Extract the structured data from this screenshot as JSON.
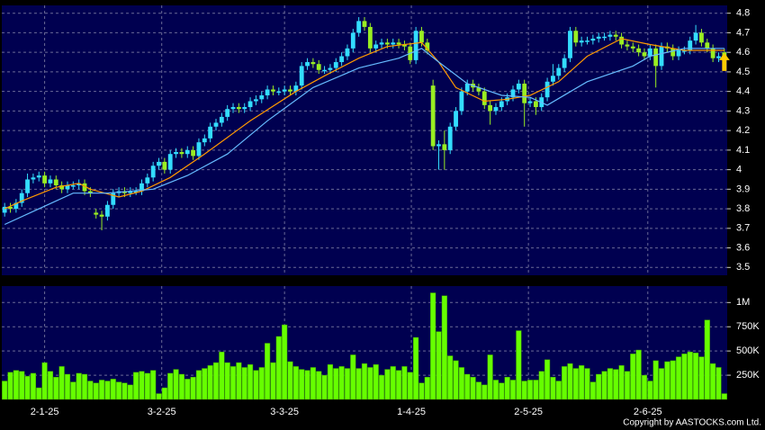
{
  "chart_data": [
    {
      "type": "candlestick",
      "up_color": "#33ddff",
      "down_color": "#99ee22",
      "xlim": [
        -0.5,
        126.5
      ],
      "ylim": [
        3.46,
        4.84
      ],
      "yticks": [
        3.5,
        3.6,
        3.7,
        3.8,
        3.9,
        4,
        4.1,
        4.2,
        4.3,
        4.4,
        4.5,
        4.6,
        4.7,
        4.8
      ],
      "grid": true,
      "open": [
        3.78,
        3.81,
        3.8,
        3.83,
        3.88,
        3.95,
        3.96,
        3.97,
        3.93,
        3.95,
        3.92,
        3.9,
        3.92,
        3.92,
        3.93,
        3.89,
        3.78,
        3.77,
        3.76,
        3.82,
        3.88,
        3.89,
        3.88,
        3.89,
        3.89,
        3.93,
        3.96,
        4.02,
        4.04,
        4.0,
        4.08,
        4.09,
        4.08,
        4.1,
        4.07,
        4.14,
        4.16,
        4.22,
        4.24,
        4.27,
        4.31,
        4.32,
        4.31,
        4.32,
        4.35,
        4.36,
        4.38,
        4.41,
        4.4,
        4.4,
        4.41,
        4.4,
        4.43,
        4.53,
        4.55,
        4.54,
        4.51,
        4.51,
        4.52,
        4.55,
        4.58,
        4.62,
        4.7,
        4.76,
        4.73,
        4.62,
        4.64,
        4.65,
        4.64,
        4.65,
        4.64,
        4.63,
        4.56,
        4.71,
        4.65,
        4.43,
        4.12,
        4.13,
        4.1,
        4.22,
        4.3,
        4.4,
        4.44,
        4.42,
        4.4,
        4.33,
        4.3,
        4.32,
        4.35,
        4.37,
        4.41,
        4.44,
        4.34,
        4.35,
        4.32,
        4.37,
        4.45,
        4.48,
        4.52,
        4.57,
        4.71,
        4.65,
        4.66,
        4.66,
        4.67,
        4.68,
        4.68,
        4.69,
        4.68,
        4.64,
        4.63,
        4.62,
        4.6,
        4.58,
        4.62,
        4.53,
        4.63,
        4.62,
        4.58,
        4.61,
        4.61,
        4.66,
        4.7,
        4.65,
        4.62,
        4.57,
        4.6
      ],
      "high": [
        3.83,
        3.83,
        3.85,
        3.9,
        3.98,
        3.98,
        3.99,
        3.99,
        3.97,
        3.97,
        3.94,
        3.94,
        3.94,
        3.95,
        3.95,
        3.91,
        3.8,
        3.79,
        3.84,
        3.9,
        3.91,
        3.91,
        3.91,
        3.91,
        3.95,
        3.98,
        4.04,
        4.06,
        4.06,
        4.1,
        4.11,
        4.11,
        4.12,
        4.12,
        4.16,
        4.18,
        4.24,
        4.26,
        4.29,
        4.33,
        4.34,
        4.34,
        4.34,
        4.37,
        4.38,
        4.4,
        4.43,
        4.43,
        4.42,
        4.43,
        4.43,
        4.45,
        4.55,
        4.57,
        4.57,
        4.56,
        4.53,
        4.54,
        4.57,
        4.6,
        4.64,
        4.72,
        4.78,
        4.78,
        4.75,
        4.66,
        4.67,
        4.67,
        4.67,
        4.67,
        4.66,
        4.65,
        4.73,
        4.73,
        4.67,
        4.46,
        4.15,
        4.2,
        4.24,
        4.32,
        4.42,
        4.46,
        4.46,
        4.44,
        4.42,
        4.35,
        4.34,
        4.37,
        4.39,
        4.43,
        4.46,
        4.46,
        4.37,
        4.37,
        4.39,
        4.47,
        4.54,
        4.54,
        4.59,
        4.73,
        4.73,
        4.68,
        4.68,
        4.69,
        4.7,
        4.7,
        4.71,
        4.71,
        4.7,
        4.66,
        4.65,
        4.64,
        4.62,
        4.64,
        4.64,
        4.65,
        4.65,
        4.64,
        4.63,
        4.63,
        4.68,
        4.74,
        4.72,
        4.67,
        4.64,
        4.6,
        4.62
      ],
      "low": [
        3.76,
        3.78,
        3.78,
        3.81,
        3.86,
        3.93,
        3.94,
        3.91,
        3.91,
        3.9,
        3.88,
        3.88,
        3.9,
        3.9,
        3.87,
        3.86,
        3.75,
        3.69,
        3.74,
        3.8,
        3.86,
        3.86,
        3.86,
        3.87,
        3.87,
        3.91,
        3.94,
        4.0,
        3.98,
        3.98,
        4.06,
        4.06,
        4.06,
        4.05,
        4.05,
        4.12,
        4.14,
        4.2,
        4.22,
        4.25,
        4.29,
        4.29,
        4.29,
        4.3,
        4.33,
        4.34,
        4.36,
        4.38,
        4.38,
        4.38,
        4.38,
        4.38,
        4.41,
        4.51,
        4.52,
        4.49,
        4.49,
        4.49,
        4.5,
        4.53,
        4.56,
        4.6,
        4.68,
        4.71,
        4.6,
        4.6,
        4.62,
        4.62,
        4.62,
        4.62,
        4.61,
        4.54,
        4.54,
        4.63,
        4.59,
        4.1,
        4.0,
        4.0,
        4.08,
        4.2,
        4.28,
        4.38,
        4.4,
        4.38,
        4.31,
        4.23,
        4.28,
        4.3,
        4.33,
        4.35,
        4.39,
        4.22,
        4.32,
        4.28,
        4.3,
        4.35,
        4.43,
        4.46,
        4.5,
        4.55,
        4.63,
        4.63,
        4.64,
        4.64,
        4.65,
        4.66,
        4.66,
        4.66,
        4.62,
        4.61,
        4.6,
        4.58,
        4.56,
        4.56,
        4.42,
        4.51,
        4.6,
        4.56,
        4.56,
        4.59,
        4.59,
        4.64,
        4.63,
        4.6,
        4.55,
        4.55,
        4.54
      ],
      "close": [
        3.81,
        3.8,
        3.83,
        3.88,
        3.95,
        3.96,
        3.97,
        3.93,
        3.95,
        3.92,
        3.9,
        3.92,
        3.92,
        3.93,
        3.89,
        3.88,
        3.77,
        3.76,
        3.82,
        3.88,
        3.89,
        3.88,
        3.89,
        3.89,
        3.93,
        3.96,
        4.02,
        4.04,
        4.0,
        4.08,
        4.09,
        4.08,
        4.1,
        4.07,
        4.14,
        4.16,
        4.22,
        4.24,
        4.27,
        4.31,
        4.32,
        4.31,
        4.32,
        4.35,
        4.36,
        4.38,
        4.41,
        4.4,
        4.4,
        4.41,
        4.4,
        4.43,
        4.53,
        4.55,
        4.54,
        4.51,
        4.51,
        4.52,
        4.55,
        4.58,
        4.62,
        4.7,
        4.76,
        4.73,
        4.62,
        4.64,
        4.65,
        4.64,
        4.65,
        4.64,
        4.63,
        4.56,
        4.71,
        4.65,
        4.61,
        4.12,
        4.13,
        4.1,
        4.22,
        4.3,
        4.4,
        4.44,
        4.42,
        4.4,
        4.33,
        4.3,
        4.32,
        4.35,
        4.37,
        4.41,
        4.44,
        4.34,
        4.35,
        4.32,
        4.37,
        4.45,
        4.48,
        4.52,
        4.57,
        4.71,
        4.65,
        4.66,
        4.66,
        4.67,
        4.68,
        4.68,
        4.69,
        4.68,
        4.64,
        4.63,
        4.62,
        4.6,
        4.58,
        4.62,
        4.53,
        4.63,
        4.62,
        4.58,
        4.61,
        4.61,
        4.66,
        4.7,
        4.65,
        4.62,
        4.57,
        4.58,
        4.56
      ],
      "series": [
        {
          "color": "#ff9900",
          "x": [
            0,
            3,
            9,
            13,
            15,
            20,
            24,
            29,
            35,
            43,
            51,
            56,
            62,
            67,
            73,
            76,
            79,
            84,
            88,
            92,
            97,
            102,
            108,
            113,
            119,
            126
          ],
          "values": [
            3.8,
            3.84,
            3.91,
            3.93,
            3.9,
            3.86,
            3.89,
            3.96,
            4.08,
            4.25,
            4.4,
            4.48,
            4.57,
            4.63,
            4.65,
            4.55,
            4.42,
            4.35,
            4.36,
            4.38,
            4.45,
            4.58,
            4.67,
            4.64,
            4.61,
            4.61
          ]
        },
        {
          "color": "#66bbff",
          "x": [
            0,
            6,
            12,
            18,
            26,
            32,
            39,
            46,
            54,
            62,
            69,
            73,
            76,
            81,
            87,
            92,
            95,
            102,
            110,
            113,
            119,
            126
          ],
          "values": [
            3.72,
            3.8,
            3.88,
            3.88,
            3.9,
            3.97,
            4.08,
            4.25,
            4.42,
            4.52,
            4.57,
            4.62,
            4.55,
            4.44,
            4.38,
            4.37,
            4.33,
            4.45,
            4.53,
            4.58,
            4.62,
            4.62
          ]
        }
      ]
    },
    {
      "type": "bar",
      "color": "#66ff00",
      "xlim": [
        -0.5,
        126.5
      ],
      "ylim": [
        0,
        1170000
      ],
      "yticks": [
        {
          "value": 250000,
          "label": "250K"
        },
        {
          "value": 500000,
          "label": "500K"
        },
        {
          "value": 750000,
          "label": "750K"
        },
        {
          "value": 1000000,
          "label": "1M"
        }
      ],
      "xticks": [
        {
          "value": 7,
          "label": "2-1-25"
        },
        {
          "value": 27.5,
          "label": "3-2-25"
        },
        {
          "value": 49,
          "label": "3-3-25"
        },
        {
          "value": 71.2,
          "label": "1-4-25"
        },
        {
          "value": 91.7,
          "label": "2-5-25"
        },
        {
          "value": 112.6,
          "label": "2-6-25"
        }
      ],
      "grid": true,
      "values": [
        190000,
        280000,
        300000,
        290000,
        240000,
        270000,
        120000,
        380000,
        290000,
        230000,
        340000,
        260000,
        180000,
        270000,
        260000,
        190000,
        170000,
        200000,
        190000,
        210000,
        180000,
        170000,
        150000,
        280000,
        290000,
        270000,
        300000,
        60000,
        120000,
        270000,
        310000,
        260000,
        210000,
        230000,
        300000,
        320000,
        350000,
        380000,
        490000,
        380000,
        340000,
        380000,
        330000,
        360000,
        300000,
        330000,
        580000,
        380000,
        650000,
        770000,
        390000,
        340000,
        310000,
        300000,
        330000,
        290000,
        250000,
        360000,
        320000,
        340000,
        320000,
        460000,
        320000,
        370000,
        330000,
        360000,
        250000,
        310000,
        340000,
        300000,
        340000,
        280000,
        640000,
        170000,
        230000,
        1100000,
        700000,
        1070000,
        450000,
        400000,
        330000,
        260000,
        230000,
        180000,
        150000,
        460000,
        200000,
        170000,
        230000,
        200000,
        710000,
        190000,
        200000,
        200000,
        290000,
        410000,
        230000,
        190000,
        340000,
        370000,
        320000,
        350000,
        320000,
        180000,
        260000,
        290000,
        320000,
        310000,
        350000,
        290000,
        470000,
        510000,
        250000,
        190000,
        400000,
        320000,
        390000,
        400000,
        440000,
        470000,
        490000,
        480000,
        440000,
        820000,
        370000,
        330000,
        60000
      ]
    }
  ],
  "copyright": "Copyright by AASTOCKS.com Ltd."
}
